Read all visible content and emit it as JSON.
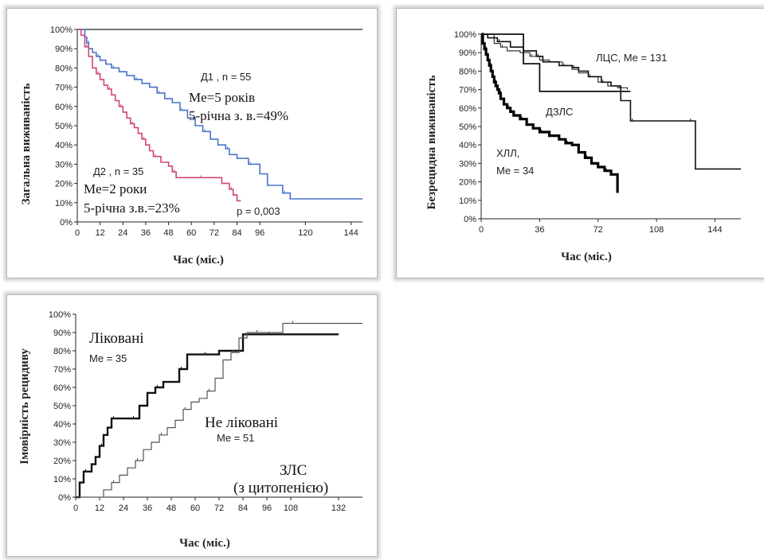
{
  "chart_data": [
    {
      "type": "line",
      "ylabel": "Загальна виживаність",
      "xlabel": "Час (міс.)",
      "xticks": [
        0,
        12,
        24,
        36,
        48,
        60,
        72,
        84,
        96,
        120,
        144
      ],
      "yticks": [
        "0%",
        "10%",
        "20%",
        "30%",
        "40%",
        "50%",
        "60%",
        "70%",
        "80%",
        "90%",
        "100%"
      ],
      "xlim": [
        0,
        150
      ],
      "ylim": [
        0,
        100
      ],
      "series": [
        {
          "name": "Д1",
          "color": "#4a72c8",
          "x": [
            0,
            4,
            5,
            6,
            8,
            10,
            12,
            15,
            18,
            22,
            26,
            30,
            34,
            38,
            42,
            46,
            50,
            54,
            58,
            62,
            66,
            70,
            74,
            78,
            80,
            84,
            90,
            96,
            100,
            108,
            112,
            150
          ],
          "y": [
            100,
            96,
            93,
            90,
            88,
            86,
            84,
            82,
            80,
            78,
            76,
            74,
            72,
            70,
            67,
            64,
            62,
            58,
            54,
            50,
            47,
            43,
            40,
            38,
            35,
            33,
            30,
            25,
            19,
            15,
            12,
            12
          ]
        },
        {
          "name": "Д2",
          "color": "#d0457a",
          "x": [
            0,
            2,
            4,
            6,
            8,
            10,
            12,
            14,
            16,
            18,
            20,
            22,
            24,
            26,
            28,
            30,
            32,
            34,
            36,
            38,
            40,
            44,
            48,
            50,
            52,
            60,
            64,
            72,
            76,
            80,
            82,
            84,
            86
          ],
          "y": [
            100,
            97,
            91,
            86,
            80,
            77,
            74,
            71,
            69,
            66,
            63,
            60,
            57,
            54,
            51,
            49,
            46,
            43,
            40,
            37,
            34,
            31,
            29,
            26,
            23,
            23,
            23,
            23,
            20,
            17,
            14,
            11,
            11
          ]
        }
      ],
      "annotations": {
        "d1_label": "Д1 , n = 55",
        "d1_me": "Me=5 років",
        "d1_rate": "5-річна з. в.=49%",
        "d2_label": "Д2 , n = 35",
        "d2_me": "Me=2 роки",
        "d2_rate": "5-річна з.в.=23%",
        "p_value": "p = 0,003"
      }
    },
    {
      "type": "line",
      "ylabel": "Безрецидна виживаність",
      "xlabel": "Час (міс.)",
      "xticks": [
        0,
        36,
        72,
        108,
        144
      ],
      "yticks": [
        "0%",
        "10%",
        "20%",
        "30%",
        "40%",
        "50%",
        "60%",
        "70%",
        "80%",
        "90%",
        "100%"
      ],
      "xlim": [
        0,
        160
      ],
      "ylim": [
        0,
        100
      ],
      "series": [
        {
          "name": "ЛЦС",
          "color": "#333333",
          "x": [
            0,
            8,
            12,
            16,
            24,
            30,
            36,
            42,
            50,
            56,
            60,
            66,
            72,
            78,
            84,
            90
          ],
          "y": [
            100,
            95,
            93,
            91,
            90,
            88,
            86,
            85,
            83,
            81,
            79,
            77,
            74,
            72,
            71,
            70
          ]
        },
        {
          "name": "ДЗЛС",
          "color": "#111111",
          "x": [
            0,
            4,
            10,
            18,
            26,
            34,
            38,
            48,
            56,
            60,
            66,
            74,
            80,
            86,
            92,
            100,
            110,
            128,
            132,
            160
          ],
          "y": [
            100,
            98,
            96,
            93,
            91,
            88,
            85,
            83,
            82,
            80,
            77,
            74,
            72,
            64,
            53,
            53,
            53,
            53,
            27,
            27
          ]
        },
        {
          "name": "ХЛЛ",
          "color": "#000000",
          "x": [
            0,
            1,
            2,
            3,
            4,
            5,
            6,
            7,
            8,
            9,
            10,
            11,
            12,
            14,
            16,
            18,
            20,
            24,
            28,
            32,
            36,
            42,
            48,
            52,
            56,
            60,
            64,
            68,
            72,
            76,
            80,
            84
          ],
          "y": [
            100,
            95,
            92,
            89,
            86,
            83,
            80,
            77,
            74,
            72,
            70,
            68,
            65,
            62,
            60,
            58,
            56,
            54,
            51,
            49,
            47,
            45,
            43,
            41,
            40,
            36,
            33,
            30,
            28,
            26,
            24,
            14
          ]
        }
      ],
      "extra_lines": [
        {
          "color": "#111111",
          "x": [
            0,
            26,
            26,
            36,
            36,
            60,
            60,
            92
          ],
          "y": [
            100,
            100,
            84,
            84,
            69,
            69,
            69,
            69
          ]
        }
      ],
      "annotations": {
        "lcs": "ЛЦС, Me = 131",
        "dzls": "ДЗЛС",
        "hll": "ХЛЛ,",
        "hll_me": "Me = 34"
      }
    },
    {
      "type": "line",
      "ylabel": "Імовірність рецидиву",
      "xlabel": "Час (міс.)",
      "xticks": [
        0,
        12,
        24,
        36,
        48,
        60,
        72,
        84,
        96,
        108,
        132
      ],
      "yticks": [
        "0%",
        "10%",
        "20%",
        "30%",
        "40%",
        "50%",
        "60%",
        "70%",
        "80%",
        "90%",
        "100%"
      ],
      "xlim": [
        0,
        144
      ],
      "ylim": [
        0,
        100
      ],
      "series": [
        {
          "name": "Ліковані",
          "color": "#111111",
          "x": [
            0,
            2,
            4,
            8,
            10,
            12,
            14,
            16,
            18,
            20,
            24,
            28,
            32,
            36,
            40,
            44,
            48,
            52,
            56,
            60,
            64,
            72,
            84,
            96,
            108,
            124,
            132
          ],
          "y": [
            0,
            8,
            14,
            18,
            22,
            28,
            34,
            38,
            43,
            43,
            43,
            43,
            50,
            57,
            60,
            63,
            63,
            70,
            78,
            78,
            78,
            80,
            89,
            89,
            89,
            89,
            89
          ]
        },
        {
          "name": "Не ліковані",
          "color": "#555555",
          "x": [
            0,
            14,
            18,
            22,
            26,
            30,
            34,
            38,
            42,
            46,
            50,
            54,
            58,
            62,
            66,
            70,
            74,
            78,
            82,
            86,
            90,
            96,
            104,
            108,
            120,
            144
          ],
          "y": [
            0,
            4,
            8,
            12,
            16,
            20,
            26,
            30,
            34,
            38,
            42,
            48,
            52,
            54,
            58,
            65,
            75,
            79,
            87,
            90,
            90,
            90,
            95,
            95,
            95,
            95
          ]
        }
      ],
      "annotations": {
        "treated": "Ліковані",
        "treated_me": "Me = 35",
        "untreated": "Не ліковані",
        "untreated_me": "Me = 51",
        "zls": "ЗЛС",
        "zls_sub": "(з цитопенією)"
      }
    }
  ]
}
